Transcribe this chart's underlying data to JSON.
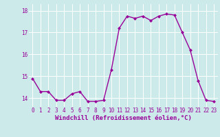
{
  "x": [
    0,
    1,
    2,
    3,
    4,
    5,
    6,
    7,
    8,
    9,
    10,
    11,
    12,
    13,
    14,
    15,
    16,
    17,
    18,
    19,
    20,
    21,
    22,
    23
  ],
  "y": [
    14.9,
    14.3,
    14.3,
    13.9,
    13.9,
    14.2,
    14.3,
    13.85,
    13.85,
    13.9,
    15.3,
    17.2,
    17.75,
    17.65,
    17.75,
    17.55,
    17.75,
    17.85,
    17.8,
    17.0,
    16.2,
    14.8,
    13.9,
    13.85
  ],
  "line_color": "#990099",
  "marker": "D",
  "marker_size": 2.0,
  "bg_color": "#cceae9",
  "grid_color": "#ffffff",
  "xlabel": "Windchill (Refroidissement éolien,°C)",
  "xlabel_color": "#990099",
  "ylim": [
    13.6,
    18.3
  ],
  "xlim": [
    -0.5,
    23.5
  ],
  "yticks": [
    14,
    15,
    16,
    17,
    18
  ],
  "xticks": [
    0,
    1,
    2,
    3,
    4,
    5,
    6,
    7,
    8,
    9,
    10,
    11,
    12,
    13,
    14,
    15,
    16,
    17,
    18,
    19,
    20,
    21,
    22,
    23
  ],
  "tick_fontsize": 5.5,
  "xlabel_fontsize": 6.5,
  "line_width": 1.0
}
